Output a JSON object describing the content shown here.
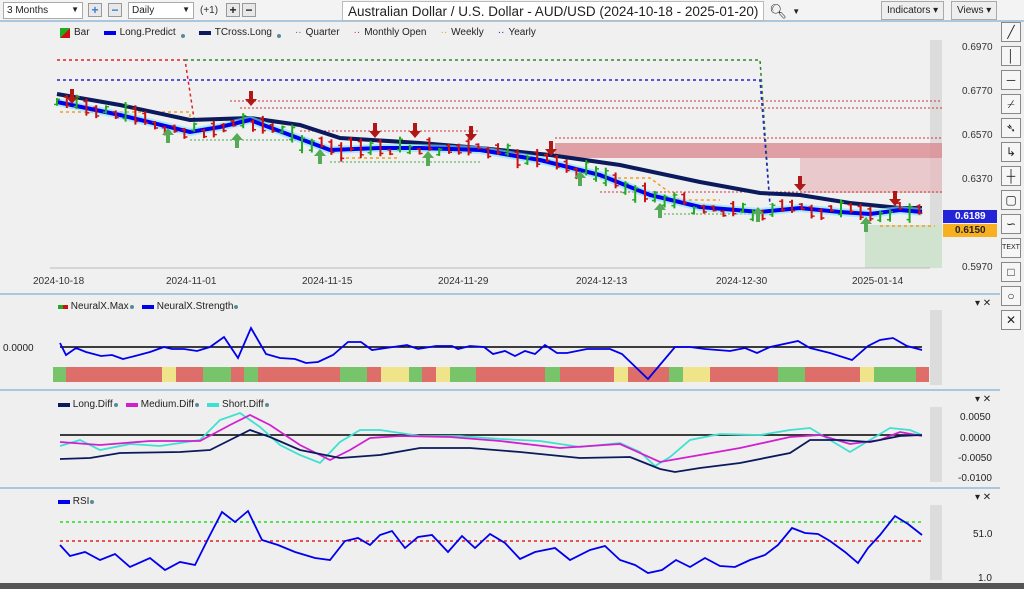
{
  "toolbar": {
    "range": "3 Months",
    "interval": "Daily",
    "offset": "(+1)",
    "plus": "+",
    "minus": "−",
    "title": "Australian Dollar / U.S. Dollar - AUD/USD (2024-10-18 - 2025-01-20)",
    "search_icon": "search-icon",
    "indicators": "Indicators",
    "views": "Views"
  },
  "legend": [
    "Bar",
    "Long.Predict",
    "TCross.Long",
    "Quarter",
    "Monthly Open",
    "Weekly",
    "Yearly"
  ],
  "price_axis": [
    "0.6970",
    "0.6770",
    "0.6570",
    "0.6370",
    "0.5970"
  ],
  "current_price": "0.6189",
  "secondary_price": "0.6150",
  "x_axis": [
    "2024-10-18",
    "2024-11-01",
    "2024-11-15",
    "2024-11-29",
    "2024-12-13",
    "2024-12-30",
    "2025-01-14"
  ],
  "neural": {
    "legend": [
      "NeuralX.Max",
      "NeuralX.Strength"
    ],
    "axis": "0.0000"
  },
  "diff": {
    "legend": [
      "Long.Diff",
      "Medium.Diff",
      "Short.Diff"
    ],
    "axis": [
      "0.0050",
      "0.0000",
      "-0.0050",
      "-0.0100"
    ]
  },
  "rsi": {
    "legend": "RSI",
    "axis": [
      "51.0",
      "1.0"
    ]
  },
  "tools": [
    "trend-line",
    "vertical-line",
    "horizontal-line",
    "ray",
    "fibonacci",
    "step",
    "crosshair",
    "callout",
    "wave",
    "TEXT",
    "rectangle",
    "ellipse",
    "delete"
  ],
  "colors": {
    "long_predict": "#0000ee",
    "tcross_long": "#0a1a5c",
    "bull": "#22aa22",
    "bear": "#cc1111",
    "panel_bg": "#efefef"
  }
}
